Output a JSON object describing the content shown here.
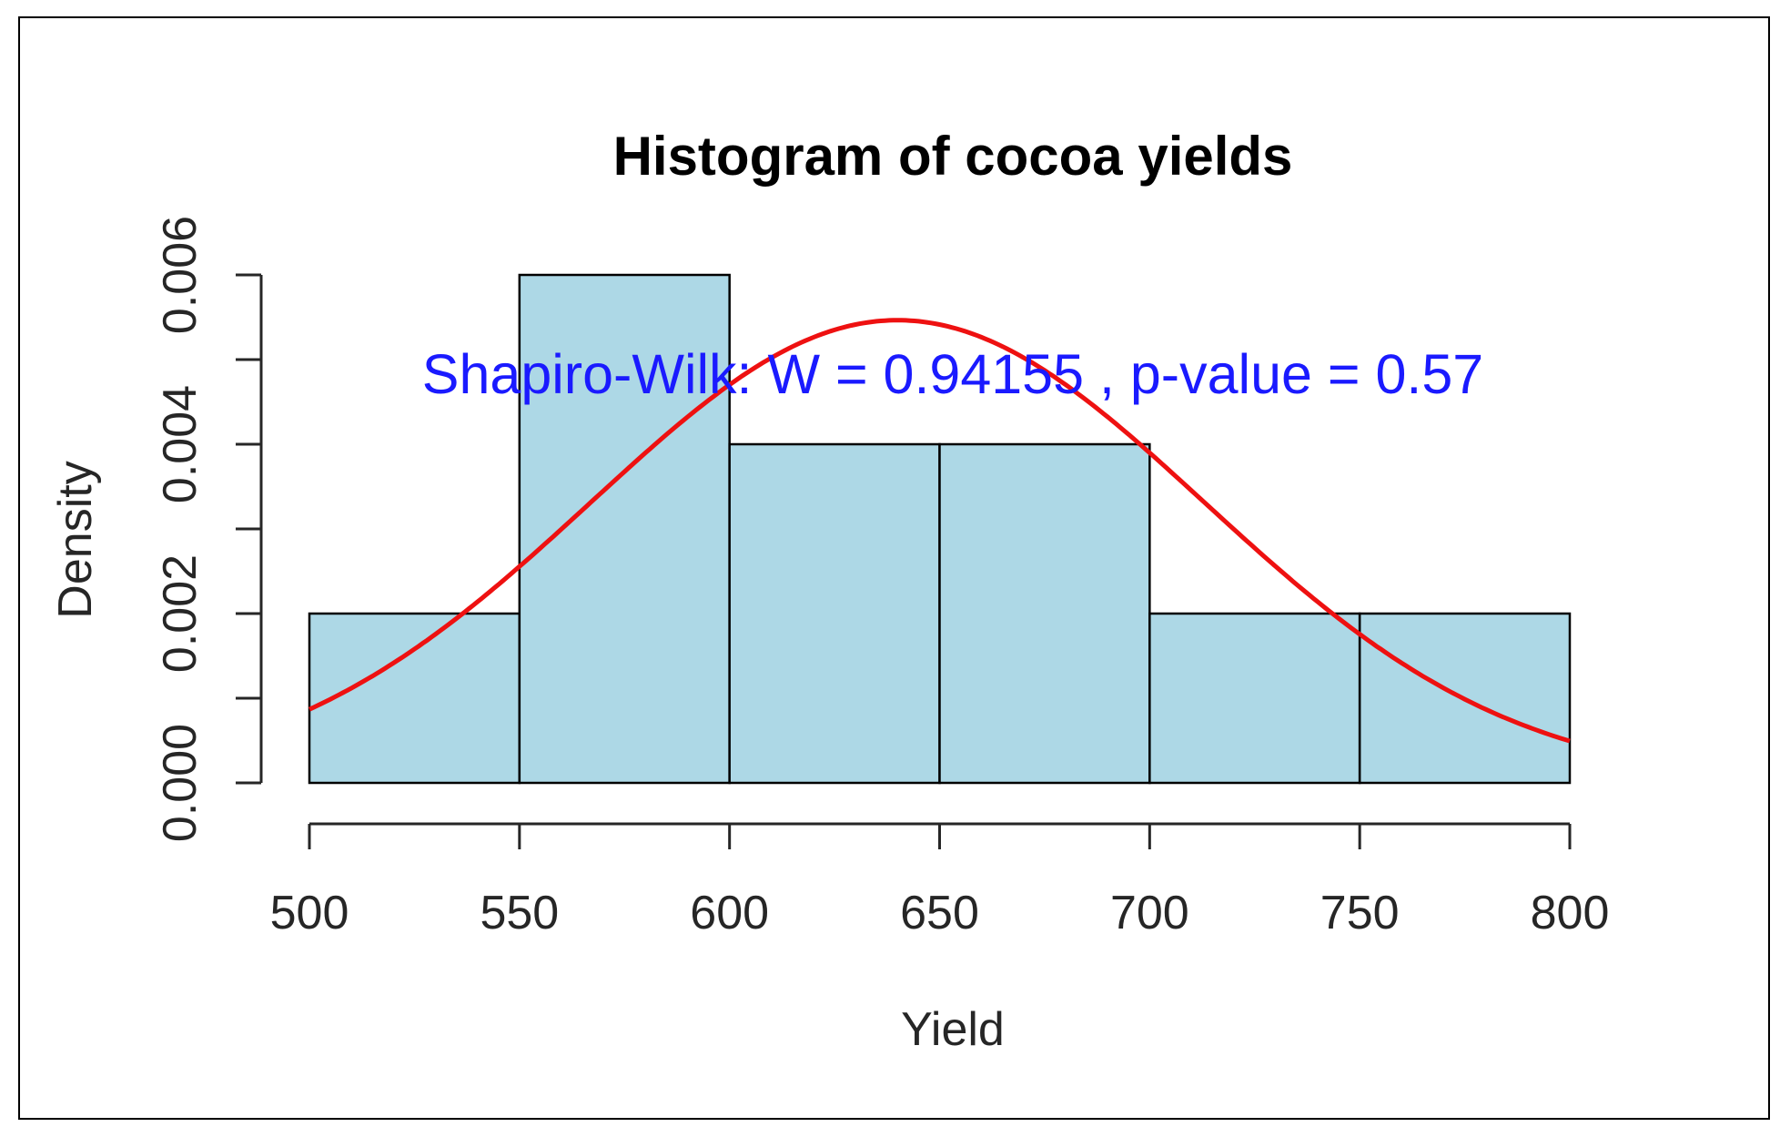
{
  "chart_data": {
    "type": "histogram",
    "title": "Histogram of cocoa yields",
    "xlabel": "Yield",
    "ylabel": "Density",
    "bins": [
      500,
      550,
      600,
      650,
      700,
      750,
      800
    ],
    "values": [
      0.002,
      0.006,
      0.004,
      0.004,
      0.002,
      0.002
    ],
    "xticks": [
      "500",
      "550",
      "600",
      "650",
      "700",
      "750",
      "800"
    ],
    "yticks": [
      "0.000",
      "0.002",
      "0.004",
      "0.006"
    ],
    "xlim": [
      500,
      800
    ],
    "ylim": [
      0,
      0.006
    ],
    "bar_color": "#add8e6",
    "bar_edge_color": "#000000",
    "normal_curve": {
      "mean": 640,
      "sd": 73,
      "color": "#ee1111"
    },
    "annotation": {
      "text": "Shapiro-Wilk: W =  0.94155 , p-value =  0.57",
      "color": "#1a1aff"
    }
  }
}
